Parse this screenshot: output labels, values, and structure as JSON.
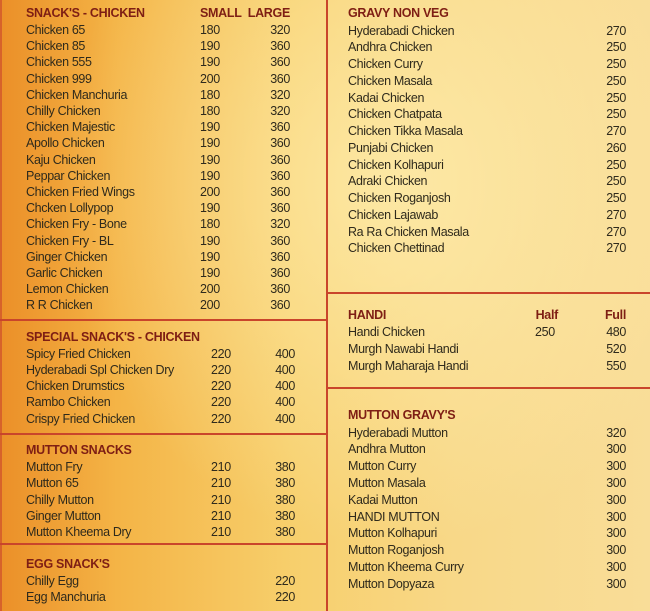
{
  "colors": {
    "divider": "#c9452b",
    "heading": "#7e1e14",
    "text": "#2f2a1c"
  },
  "sections": [
    {
      "id": "snacks-chicken",
      "title": "SNACK'S - CHICKEN",
      "col_headers": [
        "SMALL",
        "LARGE"
      ],
      "items": [
        [
          "Chicken 65",
          "180",
          "320"
        ],
        [
          "Chicken 85",
          "190",
          "360"
        ],
        [
          "Chicken 555",
          "190",
          "360"
        ],
        [
          "Chicken 999",
          "200",
          "360"
        ],
        [
          "Chicken Manchuria",
          "180",
          "320"
        ],
        [
          "Chilly Chicken",
          "180",
          "320"
        ],
        [
          "Chicken Majestic",
          "190",
          "360"
        ],
        [
          "Apollo Chicken",
          "190",
          "360"
        ],
        [
          "Kaju Chicken",
          "190",
          "360"
        ],
        [
          "Peppar Chicken",
          "190",
          "360"
        ],
        [
          "Chicken Fried Wings",
          "200",
          "360"
        ],
        [
          "Chcken Lollypop",
          "190",
          "360"
        ],
        [
          "Chicken Fry - Bone",
          "180",
          "320"
        ],
        [
          "Chicken Fry - BL",
          "190",
          "360"
        ],
        [
          "Ginger Chicken",
          "190",
          "360"
        ],
        [
          "Garlic Chicken",
          "190",
          "360"
        ],
        [
          "Lemon Chicken",
          "200",
          "360"
        ],
        [
          "R R Chicken",
          "200",
          "360"
        ]
      ]
    },
    {
      "id": "special-snacks-chicken",
      "title": "SPECIAL SNACK'S - CHICKEN",
      "col_headers": [],
      "items": [
        [
          "Spicy Fried Chicken",
          "220",
          "400"
        ],
        [
          "Hyderabadi Spl Chicken Dry",
          "220",
          "400"
        ],
        [
          "Chicken Drumstics",
          "220",
          "400"
        ],
        [
          "Rambo Chicken",
          "220",
          "400"
        ],
        [
          "Crispy Fried Chicken",
          "220",
          "400"
        ]
      ]
    },
    {
      "id": "mutton-snacks",
      "title": "MUTTON SNACKS",
      "col_headers": [],
      "items": [
        [
          "Mutton Fry",
          "210",
          "380"
        ],
        [
          "Mutton 65",
          "210",
          "380"
        ],
        [
          "Chilly Mutton",
          "210",
          "380"
        ],
        [
          "Ginger Mutton",
          "210",
          "380"
        ],
        [
          "Mutton Kheema Dry",
          "210",
          "380"
        ]
      ]
    },
    {
      "id": "egg-snacks",
      "title": "EGG SNACK'S",
      "col_headers": [],
      "items": [
        [
          "Chilly Egg",
          "",
          "220"
        ],
        [
          "Egg Manchuria",
          "",
          "220"
        ]
      ]
    },
    {
      "id": "gravy-non-veg",
      "title": "GRAVY NON VEG",
      "col_headers": [],
      "items": [
        [
          "Hyderabadi Chicken",
          "",
          "270"
        ],
        [
          "Andhra Chicken",
          "",
          "250"
        ],
        [
          "Chicken Curry",
          "",
          "250"
        ],
        [
          "Chicken Masala",
          "",
          "250"
        ],
        [
          "Kadai Chicken",
          "",
          "250"
        ],
        [
          "Chicken Chatpata",
          "",
          "250"
        ],
        [
          "Chicken Tikka Masala",
          "",
          "270"
        ],
        [
          "Punjabi Chicken",
          "",
          "260"
        ],
        [
          "Chicken Kolhapuri",
          "",
          "250"
        ],
        [
          "Adraki Chicken",
          "",
          "250"
        ],
        [
          "Chicken Roganjosh",
          "",
          "250"
        ],
        [
          "Chicken Lajawab",
          "",
          "270"
        ],
        [
          "Ra Ra Chicken Masala",
          "",
          "270"
        ],
        [
          "Chicken Chettinad",
          "",
          "270"
        ]
      ]
    },
    {
      "id": "handi",
      "title": "HANDI",
      "col_headers": [
        "Half",
        "Full"
      ],
      "items": [
        [
          "Handi Chicken",
          "250",
          "480"
        ],
        [
          "Murgh Nawabi Handi",
          "",
          "520"
        ],
        [
          "Murgh Maharaja Handi",
          "",
          "550"
        ]
      ]
    },
    {
      "id": "mutton-gravys",
      "title": "MUTTON GRAVY'S",
      "col_headers": [],
      "items": [
        [
          "Hyderabadi Mutton",
          "",
          "320"
        ],
        [
          "Andhra Mutton",
          "",
          "300"
        ],
        [
          "Mutton Curry",
          "",
          "300"
        ],
        [
          "Mutton Masala",
          "",
          "300"
        ],
        [
          "Kadai Mutton",
          "",
          "300"
        ],
        [
          "HANDI MUTTON",
          "",
          "300"
        ],
        [
          "Mutton Kolhapuri",
          "",
          "300"
        ],
        [
          "Mutton Roganjosh",
          "",
          "300"
        ],
        [
          "Mutton Kheema Curry",
          "",
          "300"
        ],
        [
          "Mutton Dopyaza",
          "",
          "300"
        ]
      ]
    }
  ]
}
